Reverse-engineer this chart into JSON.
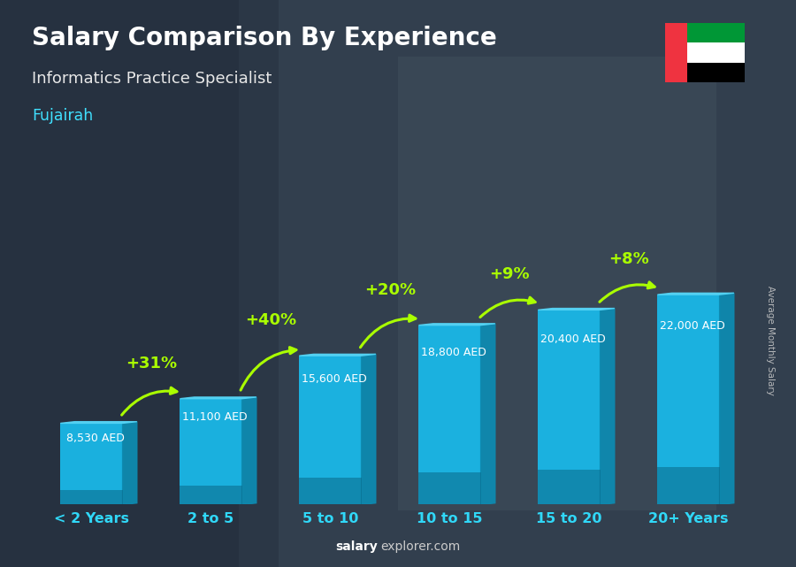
{
  "title": "Salary Comparison By Experience",
  "subtitle": "Informatics Practice Specialist",
  "city": "Fujairah",
  "ylabel": "Average Monthly Salary",
  "footer_bold": "salary",
  "footer_normal": "explorer.com",
  "categories": [
    "< 2 Years",
    "2 to 5",
    "5 to 10",
    "10 to 15",
    "15 to 20",
    "20+ Years"
  ],
  "values": [
    8530,
    11100,
    15600,
    18800,
    20400,
    22000
  ],
  "labels": [
    "8,530 AED",
    "11,100 AED",
    "15,600 AED",
    "18,800 AED",
    "20,400 AED",
    "22,000 AED"
  ],
  "pct_changes": [
    null,
    "+31%",
    "+40%",
    "+20%",
    "+9%",
    "+8%"
  ],
  "bar_color_front": "#1ab8e8",
  "bar_color_side": "#0e8ab0",
  "bar_color_top": "#55d4f5",
  "bar_color_dark": "#0a6888",
  "bg_color": "#2c3e50",
  "title_color": "#ffffff",
  "subtitle_color": "#e8e8e8",
  "city_color": "#40e0ff",
  "label_color": "#ffffff",
  "pct_color": "#aaff00",
  "arrow_color": "#aaff00",
  "xtick_color": "#30d8f8",
  "footer_color": "#cccccc",
  "footer_bold_color": "#ffffff",
  "ylabel_color": "#cccccc"
}
